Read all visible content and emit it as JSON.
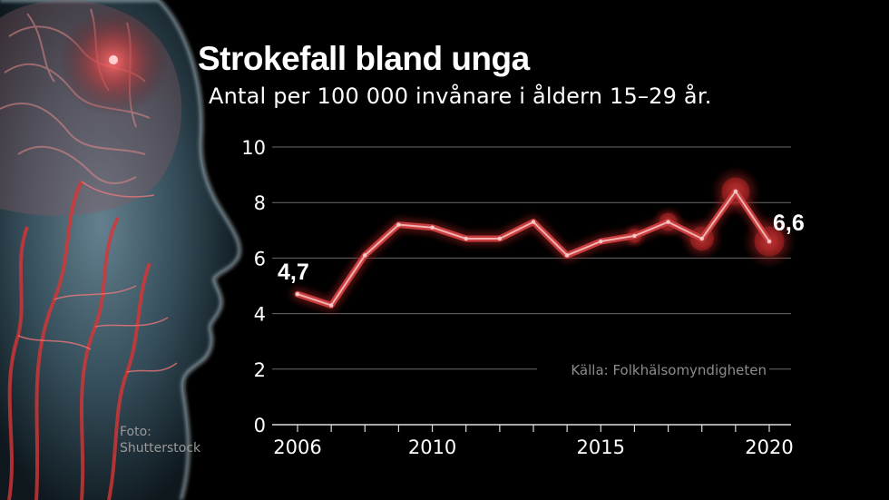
{
  "chart_data": {
    "type": "line",
    "title": "Strokefall bland unga",
    "subtitle": "Antal per 100 000 invånare i åldern 15–29 år.",
    "source": "Källa: Folkhälsomyndigheten",
    "photo_credit": [
      "Foto:",
      "Shutterstock"
    ],
    "x": [
      2006,
      2007,
      2008,
      2009,
      2010,
      2011,
      2012,
      2013,
      2014,
      2015,
      2016,
      2017,
      2018,
      2019,
      2020
    ],
    "values": [
      4.7,
      4.3,
      6.1,
      7.2,
      7.1,
      6.7,
      6.7,
      7.3,
      6.1,
      6.6,
      6.8,
      7.3,
      6.7,
      8.4,
      6.6
    ],
    "x_tick_labels": [
      "2006",
      "2010",
      "2015",
      "2020"
    ],
    "y_tick_labels": [
      "0",
      "2",
      "4",
      "6",
      "8",
      "10"
    ],
    "ylim": [
      0,
      10
    ],
    "xlim": [
      2006,
      2020
    ],
    "grid": true,
    "annotations": [
      {
        "x": 2006,
        "label": "4,7"
      },
      {
        "x": 2020,
        "label": "6,6"
      }
    ],
    "glow_years": [
      2016,
      2017,
      2018,
      2019,
      2020
    ],
    "colors": {
      "line": "#c73d3d",
      "line_core": "#f2b2b2",
      "grid": "#6a6a6a",
      "glow": "#e03030"
    }
  }
}
